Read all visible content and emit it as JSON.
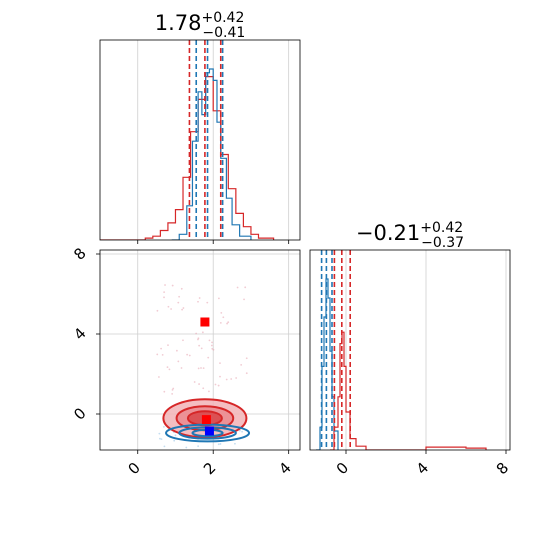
{
  "chart_data": [
    {
      "panel": "marginal-param1",
      "type": "histogram",
      "title": {
        "main": "1.78",
        "sup": "+0.42",
        "sub": "−0.41"
      },
      "xlim": [
        -1,
        4.3
      ],
      "series": [
        {
          "name": "",
          "color": "#d62728",
          "bins": [
            {
              "x": -1.0,
              "y": 0.0
            },
            {
              "x": 0.2,
              "y": 0.01
            },
            {
              "x": 0.4,
              "y": 0.02
            },
            {
              "x": 0.6,
              "y": 0.05
            },
            {
              "x": 0.8,
              "y": 0.09
            },
            {
              "x": 1.0,
              "y": 0.16
            },
            {
              "x": 1.2,
              "y": 0.33
            },
            {
              "x": 1.4,
              "y": 0.57
            },
            {
              "x": 1.6,
              "y": 0.74
            },
            {
              "x": 1.8,
              "y": 0.86
            },
            {
              "x": 2.0,
              "y": 0.68
            },
            {
              "x": 2.2,
              "y": 0.45
            },
            {
              "x": 2.4,
              "y": 0.27
            },
            {
              "x": 2.6,
              "y": 0.14
            },
            {
              "x": 2.8,
              "y": 0.07
            },
            {
              "x": 3.0,
              "y": 0.03
            },
            {
              "x": 3.2,
              "y": 0.01
            },
            {
              "x": 3.6,
              "y": 0.0
            }
          ],
          "quantiles": [
            1.37,
            1.78,
            2.2
          ]
        },
        {
          "name": "",
          "color": "#1f77b4",
          "bins": [
            {
              "x": 0.9,
              "y": 0.0
            },
            {
              "x": 1.1,
              "y": 0.03
            },
            {
              "x": 1.3,
              "y": 0.18
            },
            {
              "x": 1.45,
              "y": 0.52
            },
            {
              "x": 1.6,
              "y": 0.78
            },
            {
              "x": 1.7,
              "y": 0.66
            },
            {
              "x": 1.8,
              "y": 0.88
            },
            {
              "x": 1.9,
              "y": 0.9
            },
            {
              "x": 2.0,
              "y": 0.84
            },
            {
              "x": 2.1,
              "y": 0.62
            },
            {
              "x": 2.2,
              "y": 0.43
            },
            {
              "x": 2.35,
              "y": 0.22
            },
            {
              "x": 2.5,
              "y": 0.08
            },
            {
              "x": 2.7,
              "y": 0.02
            },
            {
              "x": 3.0,
              "y": 0.0
            }
          ],
          "quantiles": [
            1.55,
            1.85,
            2.25
          ]
        }
      ],
      "xticks": [
        0,
        2,
        4
      ]
    },
    {
      "panel": "marginal-param2",
      "type": "histogram",
      "title": {
        "main": "−0.21",
        "sup": "+0.42",
        "sub": "−0.37"
      },
      "xlim": [
        -1.8,
        8.2
      ],
      "series": [
        {
          "name": "",
          "color": "#d62728",
          "bins": [
            {
              "x": -0.8,
              "y": 0.0
            },
            {
              "x": -0.6,
              "y": 0.12
            },
            {
              "x": -0.4,
              "y": 0.28
            },
            {
              "x": -0.3,
              "y": 0.56
            },
            {
              "x": -0.2,
              "y": 0.62
            },
            {
              "x": -0.1,
              "y": 0.44
            },
            {
              "x": 0.0,
              "y": 0.2
            },
            {
              "x": 0.2,
              "y": 0.06
            },
            {
              "x": 0.5,
              "y": 0.02
            },
            {
              "x": 1.0,
              "y": 0.0
            },
            {
              "x": 4.0,
              "y": 0.015
            },
            {
              "x": 6.0,
              "y": 0.01
            },
            {
              "x": 7.0,
              "y": 0.0
            }
          ],
          "quantiles": [
            -0.58,
            -0.21,
            0.21
          ]
        },
        {
          "name": "",
          "color": "#1f77b4",
          "bins": [
            {
              "x": -1.5,
              "y": 0.0
            },
            {
              "x": -1.3,
              "y": 0.12
            },
            {
              "x": -1.2,
              "y": 0.44
            },
            {
              "x": -1.1,
              "y": 0.7
            },
            {
              "x": -1.0,
              "y": 0.9
            },
            {
              "x": -0.9,
              "y": 0.8
            },
            {
              "x": -0.8,
              "y": 0.52
            },
            {
              "x": -0.7,
              "y": 0.28
            },
            {
              "x": -0.6,
              "y": 0.1
            },
            {
              "x": -0.4,
              "y": 0.0
            }
          ],
          "quantiles": [
            -1.22,
            -0.98,
            -0.7
          ]
        }
      ],
      "xticks": [
        0,
        4,
        8
      ]
    },
    {
      "panel": "joint",
      "type": "scatter",
      "xlim": [
        -1,
        4.3
      ],
      "ylim": [
        -1.8,
        8.2
      ],
      "xticks": [
        0,
        2,
        4
      ],
      "yticks": [
        0,
        4,
        8
      ],
      "markers": [
        {
          "x": 1.78,
          "y": 4.6,
          "color": "#ff0000"
        },
        {
          "x": 1.82,
          "y": -0.28,
          "color": "#ff0000"
        },
        {
          "x": 1.9,
          "y": -0.85,
          "color": "#0000ff"
        }
      ],
      "contours": [
        {
          "color": "#d62728",
          "cx": 1.78,
          "cy": -0.21,
          "rx": [
            1.1,
            0.75,
            0.45
          ],
          "ry": [
            0.95,
            0.6,
            0.35
          ]
        },
        {
          "color": "#1f77b4",
          "cx": 1.85,
          "cy": -0.95,
          "rx": [
            1.1,
            0.75,
            0.4
          ],
          "ry": [
            0.42,
            0.28,
            0.16
          ]
        }
      ]
    }
  ]
}
